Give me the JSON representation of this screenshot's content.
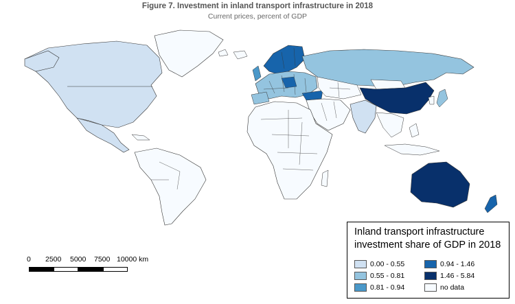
{
  "title": "Figure 7. Investment in inland transport infrastructure in 2018",
  "subtitle": "Current prices, percent of GDP",
  "legend": {
    "title_line1": "Inland transport infrastructure",
    "title_line2": "investment share of GDP in 2018",
    "classes": [
      {
        "label": "0.00 - 0.55",
        "color": "#d0e1f2"
      },
      {
        "label": "0.55 - 0.81",
        "color": "#94c4df"
      },
      {
        "label": "0.81 - 0.94",
        "color": "#4a98c9"
      },
      {
        "label": "0.94 - 1.46",
        "color": "#1764ab"
      },
      {
        "label": "1.46 - 5.84",
        "color": "#08306b"
      },
      {
        "label": "no data",
        "color": "#f7fbff"
      }
    ]
  },
  "scale_bar": {
    "ticks": [
      "0",
      "2500",
      "5000",
      "7500",
      "10000 km"
    ]
  },
  "regions": {
    "north_america": "0.00 - 0.55",
    "mexico": "0.00 - 0.55",
    "russia": "0.55 - 0.81",
    "china": "1.46 - 5.84",
    "australia": "1.46 - 5.84",
    "new_zealand": "0.94 - 1.46",
    "india": "0.00 - 0.55",
    "turkey": "0.94 - 1.46",
    "nordics": "0.94 - 1.46",
    "europe_mixed": "0.55 - 0.81",
    "south_america": "no data",
    "africa": "no data",
    "middle_east": "no data",
    "southeast_asia": "no data",
    "greenland": "no data"
  }
}
